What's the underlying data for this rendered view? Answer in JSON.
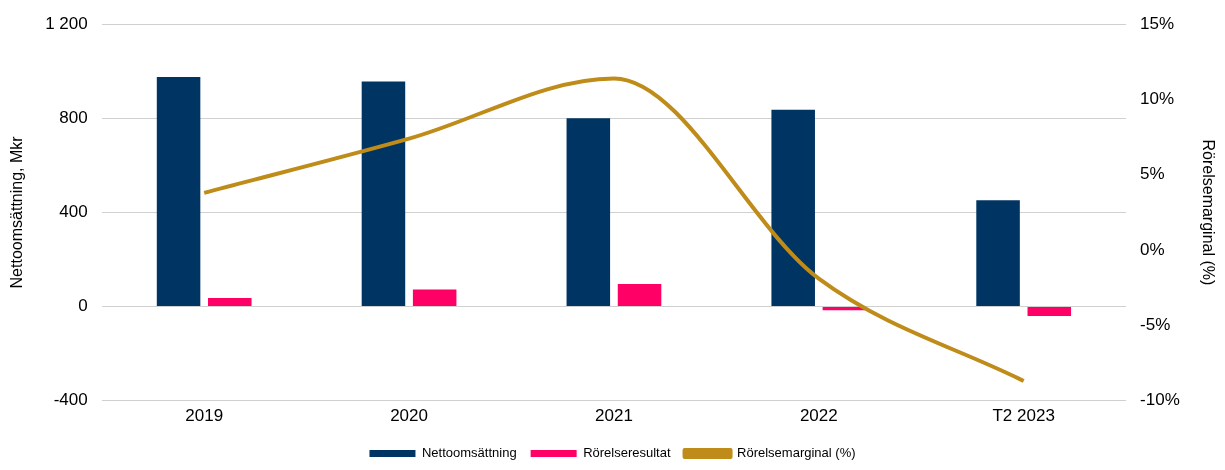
{
  "chart_data": {
    "type": "bar",
    "ylabel": "Nettoomsättning, Mkr",
    "y2label": "Rörelsemarginal (%)",
    "categories": [
      "2019",
      "2020",
      "2021",
      "2022",
      "T2 2023"
    ],
    "series": [
      {
        "name": "Nettoomsättning",
        "color": "#003462",
        "values": [
          976,
          956,
          800,
          836,
          452
        ]
      },
      {
        "name": "Rörelseresultat",
        "color": "#ff0066",
        "values": [
          36,
          72,
          96,
          -16,
          -40
        ]
      },
      {
        "name": "Rörelsemarginal (%)",
        "type": "line",
        "axis": "y2",
        "color": "#bf8c1a",
        "values": [
          3.8,
          7.4,
          11.4,
          -1.9,
          -8.7
        ]
      }
    ],
    "ylim": [
      -400,
      1200
    ],
    "yticks": [
      -400,
      0,
      400,
      800,
      {
        "value": 1200,
        "label": "1 200"
      }
    ],
    "y2lim": [
      -10,
      15
    ],
    "y2ticks": [
      {
        "value": -10,
        "label": "-10%"
      },
      {
        "value": -5,
        "label": "-5%"
      },
      {
        "value": 0,
        "label": "0%"
      },
      {
        "value": 5,
        "label": "5%"
      },
      {
        "value": 10,
        "label": "10%"
      },
      {
        "value": 15,
        "label": "15%"
      }
    ],
    "grid": "y",
    "legend": "bottom",
    "marker": "none"
  }
}
